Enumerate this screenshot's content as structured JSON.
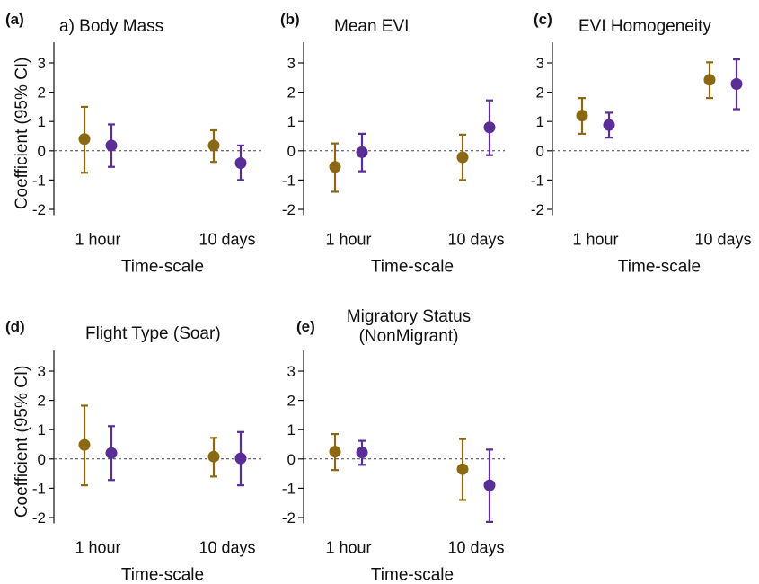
{
  "colors": {
    "series1": "#8B6914",
    "series2": "#5B2D96",
    "axis": "#111111",
    "zero_line": "#444444"
  },
  "ylabel": "Coefficient (95% CI)",
  "xlabel": "Time-scale",
  "chart_data": [
    {
      "type": "scatter",
      "panel": "(a)",
      "title": [
        "a) Body Mass"
      ],
      "categories": [
        "1 hour",
        "10 days"
      ],
      "ylim": [
        -2.2,
        3.7
      ],
      "yticks": [
        -2,
        -1,
        0,
        1,
        2,
        3
      ],
      "ytick_labels": [
        "-2",
        "-1",
        "0",
        "1",
        "2",
        "3"
      ],
      "reference_line": 0,
      "series": [
        {
          "values": [
            0.4,
            0.18
          ],
          "lower": [
            -0.75,
            -0.55
          ],
          "upper": [
            1.5,
            0.9
          ]
        },
        {
          "values": [
            0.18,
            -0.42
          ],
          "lower": [
            -0.38,
            -1.0
          ],
          "upper": [
            0.7,
            0.18
          ]
        }
      ]
    },
    {
      "type": "scatter",
      "panel": "(b)",
      "title": [
        "Mean EVI"
      ],
      "categories": [
        "1 hour",
        "10 days"
      ],
      "ylim": [
        -2.2,
        3.7
      ],
      "yticks": [
        -2,
        -1,
        0,
        1,
        2,
        3
      ],
      "ytick_labels": [
        "-2",
        "-1",
        "0",
        "1",
        "2",
        "3"
      ],
      "reference_line": 0,
      "series": [
        {
          "values": [
            -0.55,
            -0.05
          ],
          "lower": [
            -1.4,
            -0.7
          ],
          "upper": [
            0.25,
            0.58
          ]
        },
        {
          "values": [
            -0.22,
            0.8
          ],
          "lower": [
            -1.0,
            -0.15
          ],
          "upper": [
            0.55,
            1.72
          ]
        }
      ]
    },
    {
      "type": "scatter",
      "panel": "(c)",
      "title": [
        "EVI Homogeneity"
      ],
      "categories": [
        "1 hour",
        "10 days"
      ],
      "ylim": [
        -2.2,
        3.7
      ],
      "yticks": [
        -2,
        -1,
        0,
        1,
        2,
        3
      ],
      "ytick_labels": [
        "-2",
        "-1",
        "0",
        "1",
        "2",
        "3"
      ],
      "reference_line": 0,
      "series": [
        {
          "values": [
            1.2,
            0.88
          ],
          "lower": [
            0.58,
            0.45
          ],
          "upper": [
            1.8,
            1.3
          ]
        },
        {
          "values": [
            2.42,
            2.28
          ],
          "lower": [
            1.8,
            1.42
          ],
          "upper": [
            3.02,
            3.12
          ]
        }
      ]
    },
    {
      "type": "scatter",
      "panel": "(d)",
      "title": [
        "Flight Type (Soar)"
      ],
      "categories": [
        "1 hour",
        "10 days"
      ],
      "ylim": [
        -2.2,
        3.7
      ],
      "yticks": [
        -2,
        -1,
        0,
        1,
        2,
        3
      ],
      "ytick_labels": [
        "-2",
        "-1",
        "0",
        "1",
        "2",
        "3"
      ],
      "reference_line": 0,
      "series": [
        {
          "values": [
            0.48,
            0.2
          ],
          "lower": [
            -0.9,
            -0.72
          ],
          "upper": [
            1.82,
            1.12
          ]
        },
        {
          "values": [
            0.08,
            0.02
          ],
          "lower": [
            -0.6,
            -0.9
          ],
          "upper": [
            0.72,
            0.92
          ]
        }
      ]
    },
    {
      "type": "scatter",
      "panel": "(e)",
      "title": [
        "Migratory Status",
        "(NonMigrant)"
      ],
      "categories": [
        "1 hour",
        "10 days"
      ],
      "ylim": [
        -2.2,
        3.7
      ],
      "yticks": [
        -2,
        -1,
        0,
        1,
        2,
        3
      ],
      "ytick_labels": [
        "-2",
        "-1",
        "0",
        "1",
        "2",
        "3"
      ],
      "reference_line": 0,
      "series": [
        {
          "values": [
            0.25,
            0.22
          ],
          "lower": [
            -0.38,
            -0.2
          ],
          "upper": [
            0.85,
            0.62
          ]
        },
        {
          "values": [
            -0.35,
            -0.9
          ],
          "lower": [
            -1.4,
            -2.15
          ],
          "upper": [
            0.68,
            0.32
          ]
        }
      ]
    }
  ]
}
